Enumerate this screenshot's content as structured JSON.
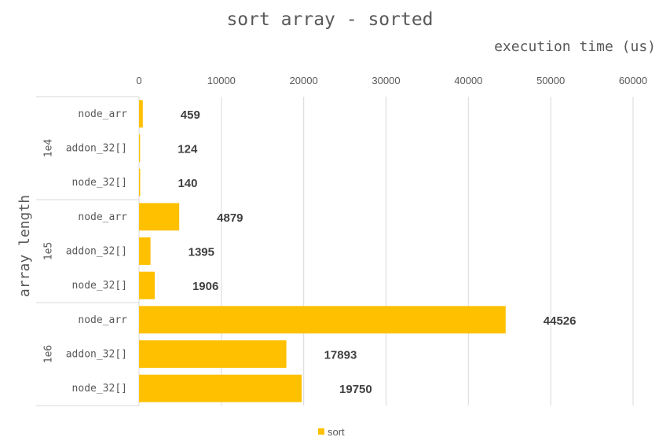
{
  "chart_data": {
    "type": "bar",
    "orientation": "horizontal",
    "title": "sort array - sorted",
    "xlabel": "execution time (us)",
    "ylabel": "array length",
    "xlim": [
      0,
      60000
    ],
    "x_ticks": [
      "0",
      "10000",
      "20000",
      "30000",
      "40000",
      "50000",
      "60000"
    ],
    "groups": [
      {
        "label": "1e4",
        "categories": [
          "node_arr",
          "addon_32[]",
          "node_32[]"
        ],
        "values": [
          459,
          124,
          140
        ]
      },
      {
        "label": "1e5",
        "categories": [
          "node_arr",
          "addon_32[]",
          "node_32[]"
        ],
        "values": [
          4879,
          1395,
          1906
        ]
      },
      {
        "label": "1e6",
        "categories": [
          "node_arr",
          "addon_32[]",
          "node_32[]"
        ],
        "values": [
          44526,
          17893,
          19750
        ]
      }
    ],
    "series": [
      {
        "name": "sort",
        "color": "#FFC000"
      }
    ],
    "grid": true,
    "legend": "bottom",
    "data_labels": true
  }
}
